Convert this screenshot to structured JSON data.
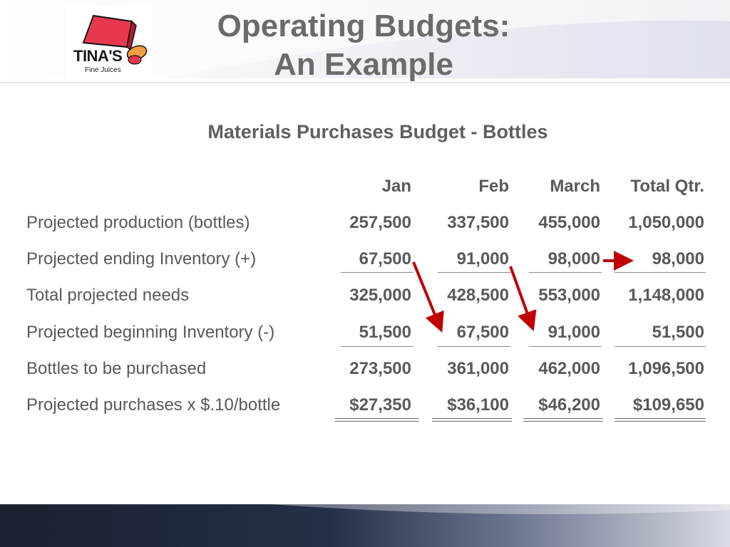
{
  "slide": {
    "title_line1": "Operating Budgets:",
    "title_line2": "An Example",
    "subtitle": "Materials Purchases Budget - Bottles"
  },
  "logo": {
    "word": "TINA'S",
    "tagline": "Fine Juices"
  },
  "table": {
    "columns": [
      "Jan",
      "Feb",
      "March",
      "Total Qtr."
    ],
    "rows": [
      {
        "label": "Projected production (bottles)",
        "values": [
          "257,500",
          "337,500",
          "455,000",
          "1,050,000"
        ]
      },
      {
        "label": "Projected ending Inventory (+)",
        "values": [
          "67,500",
          "91,000",
          "98,000",
          "98,000"
        ]
      },
      {
        "label": "Total projected needs",
        "values": [
          "325,000",
          "428,500",
          "553,000",
          "1,148,000"
        ]
      },
      {
        "label": "Projected beginning Inventory (-)",
        "values": [
          "51,500",
          "67,500",
          "91,000",
          "51,500"
        ]
      },
      {
        "label": "Bottles to be purchased",
        "values": [
          "273,500",
          "361,000",
          "462,000",
          "1,096,500"
        ]
      },
      {
        "label": "Projected purchases x $.10/bottle",
        "values": [
          "$27,350",
          "$36,100",
          "$46,200",
          "$109,650"
        ]
      }
    ]
  },
  "colors": {
    "title": "#6b6b6b",
    "text": "#595959",
    "arrow": "#c00000",
    "band_dark": "#1c2433"
  }
}
